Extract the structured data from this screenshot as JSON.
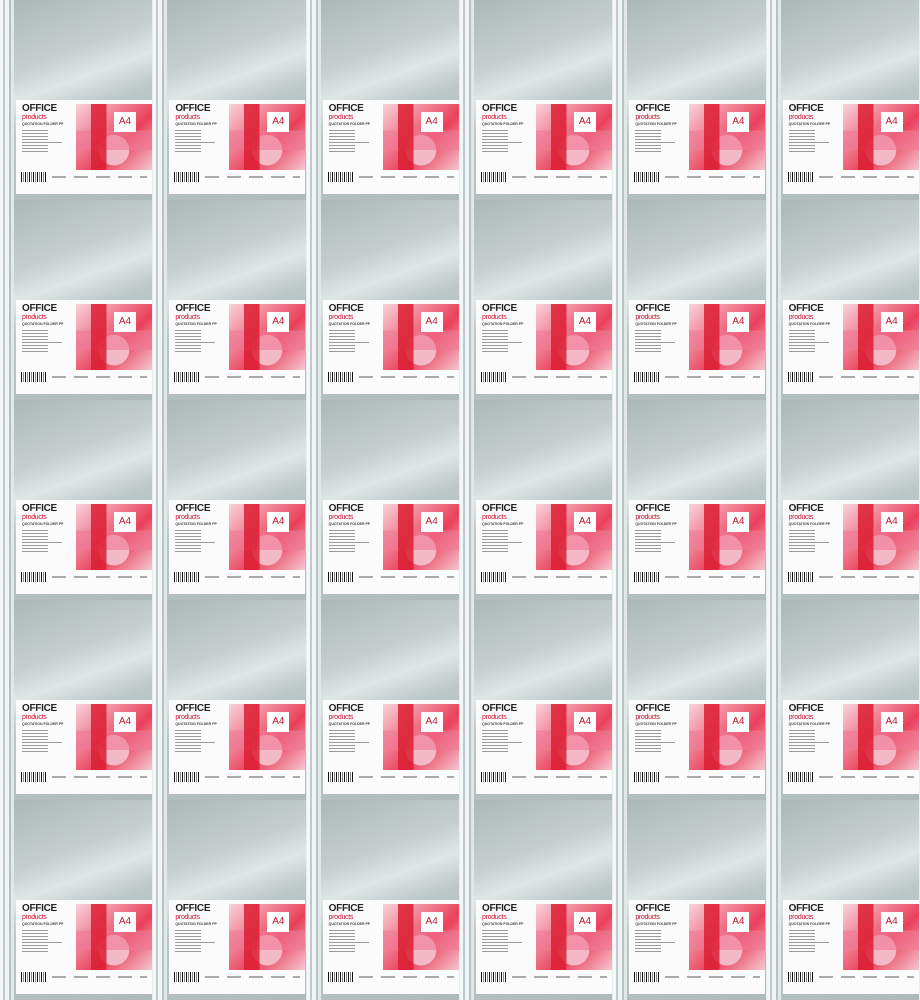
{
  "product": {
    "brand": "OFFICE",
    "brand_sub": "products",
    "title": "QUOTATION FOLDER PP",
    "size": "A4"
  },
  "colors": {
    "folder": "#b9c4c4",
    "accent": "#c8102e",
    "label": "#fbfbfb"
  }
}
